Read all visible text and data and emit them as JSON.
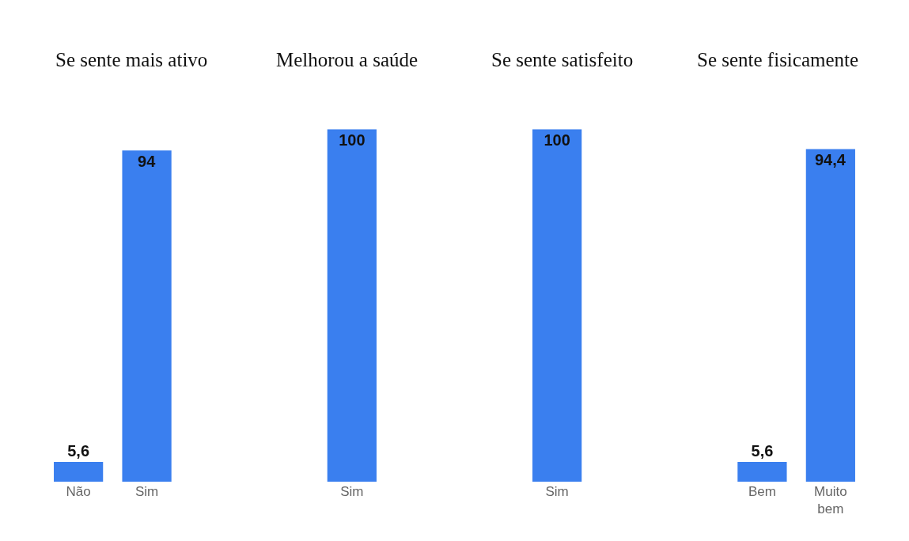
{
  "chart_data": {
    "type": "bar",
    "categories": [
      "Não",
      "Sim",
      null,
      null,
      "Sim",
      null,
      null,
      "Sim",
      null,
      null,
      "Bem",
      "Muito\nbem"
    ],
    "values": [
      5.6,
      94,
      null,
      null,
      100,
      null,
      null,
      100,
      null,
      null,
      5.6,
      94.4
    ],
    "value_labels": [
      "5,6",
      "94",
      null,
      null,
      "100",
      null,
      null,
      "100",
      null,
      null,
      "5,6",
      "94,4"
    ],
    "color": "#3a7fef",
    "annotations": [
      "Se sente mais ativo",
      "Melhorou a saúde",
      "Se sente satisfeito",
      "Se sente fisicamente"
    ],
    "tick_labels": "x"
  }
}
